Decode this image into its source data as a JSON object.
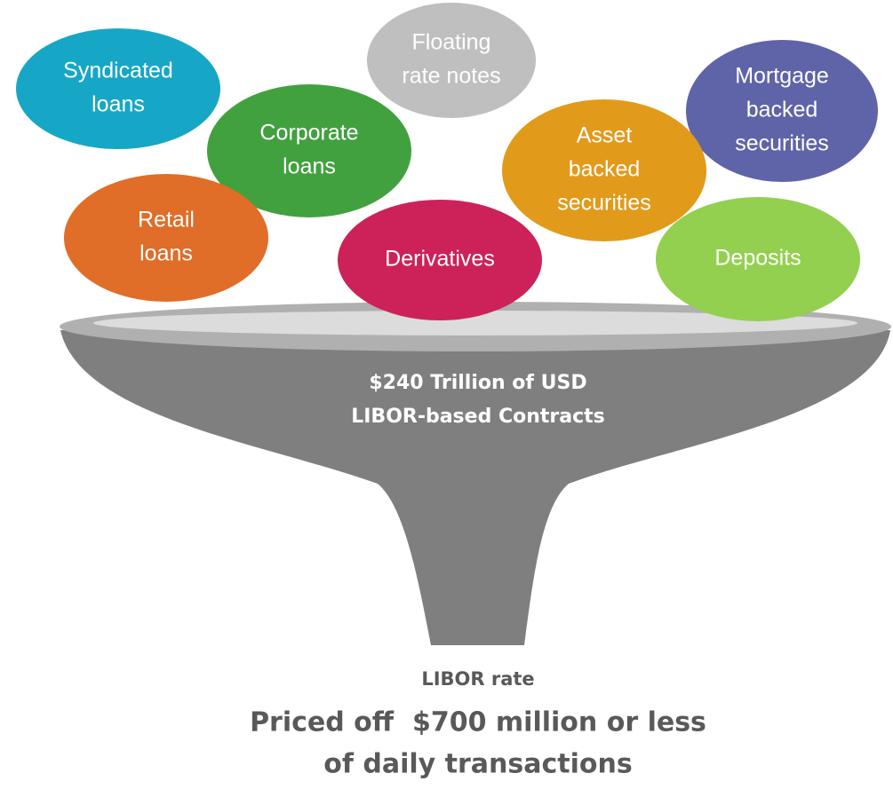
{
  "nodes": [
    {
      "lines": [
        "Syndicated",
        "loans"
      ],
      "color": "#17a7c6"
    },
    {
      "lines": [
        "Floating",
        "rate notes"
      ],
      "color": "#bfbfbf"
    },
    {
      "lines": [
        "Mortgage",
        "backed",
        "securities"
      ],
      "color": "#5f64a8"
    },
    {
      "lines": [
        "Corporate",
        "loans"
      ],
      "color": "#42a13f"
    },
    {
      "lines": [
        "Asset",
        "backed",
        "securities"
      ],
      "color": "#e29a1b"
    },
    {
      "lines": [
        "Retail",
        "loans"
      ],
      "color": "#e06d28"
    },
    {
      "lines": [
        "Derivatives"
      ],
      "color": "#cc2259"
    },
    {
      "lines": [
        "Deposits"
      ],
      "color": "#93d050"
    }
  ],
  "funnel": {
    "lines": [
      "$240 Trillion of USD",
      "LIBOR-based Contracts"
    ]
  },
  "output": {
    "label": "LIBOR rate",
    "lines": [
      "Priced off  $700 million or less",
      "of daily transactions"
    ]
  }
}
